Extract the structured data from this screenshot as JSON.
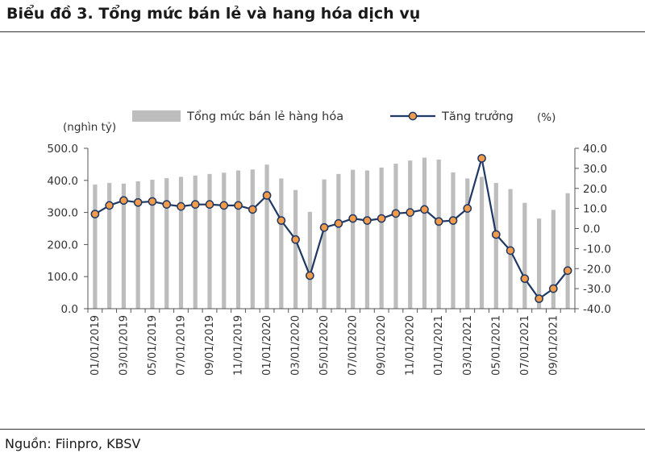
{
  "title": "Biểu đồ 3. Tổng mức bán lẻ và hang hóa dịch vụ",
  "source": "Nguồn: Fiinpro, KBSV",
  "colors": {
    "bar": "#bdbdbd",
    "line": "#1f3864",
    "marker": "#f29b4a"
  },
  "chart_data": {
    "type": "bar",
    "combo": "bar + line on secondary axis",
    "categories": [
      "01/01/2019",
      "02/01/2019",
      "03/01/2019",
      "04/01/2019",
      "05/01/2019",
      "06/01/2019",
      "07/01/2019",
      "08/01/2019",
      "09/01/2019",
      "10/01/2019",
      "11/01/2019",
      "12/01/2019",
      "01/01/2020",
      "02/01/2020",
      "03/01/2020",
      "04/01/2020",
      "05/01/2020",
      "06/01/2020",
      "07/01/2020",
      "08/01/2020",
      "09/01/2020",
      "10/01/2020",
      "11/01/2020",
      "12/01/2020",
      "01/01/2021",
      "02/01/2021",
      "03/01/2021",
      "04/01/2021",
      "05/01/2021",
      "06/01/2021",
      "07/01/2021",
      "08/01/2021",
      "09/01/2021",
      "10/01/2021"
    ],
    "xtick_labels": [
      "01/01/2019",
      "03/01/2019",
      "05/01/2019",
      "07/01/2019",
      "09/01/2019",
      "11/01/2019",
      "01/01/2020",
      "03/01/2020",
      "05/01/2020",
      "07/01/2020",
      "09/01/2020",
      "11/01/2020",
      "01/01/2021",
      "03/01/2021",
      "05/01/2021",
      "07/01/2021",
      "09/01/2021"
    ],
    "series": [
      {
        "name": "Tổng mức bán lẻ hàng hóa",
        "type": "bar",
        "axis": "left",
        "values": [
          387,
          392,
          390,
          397,
          402,
          407,
          411,
          415,
          420,
          424,
          431,
          434,
          449,
          406,
          370,
          302,
          403,
          420,
          433,
          431,
          440,
          452,
          462,
          471,
          465,
          425,
          406,
          411,
          392,
          373,
          330,
          281,
          308,
          360
        ]
      },
      {
        "name": "Tăng trưởng",
        "type": "line",
        "axis": "right",
        "values": [
          7.2,
          11.5,
          14.0,
          13.0,
          13.5,
          12.0,
          11.0,
          12.0,
          12.0,
          11.5,
          11.5,
          9.5,
          16.5,
          4.0,
          -5.5,
          -23.5,
          0.5,
          2.5,
          5.0,
          4.0,
          5.0,
          7.5,
          8.0,
          9.5,
          3.5,
          4.0,
          10.0,
          35.0,
          -3.0,
          -11.0,
          -25.0,
          -35.0,
          -30.0,
          -21.0
        ]
      }
    ],
    "y_left": {
      "label": "(nghìn tỷ)",
      "ylim": [
        0,
        500
      ],
      "ticks": [
        "0.0",
        "100.0",
        "200.0",
        "300.0",
        "400.0",
        "500.0"
      ]
    },
    "y_right": {
      "label": "(%)",
      "ylim": [
        -40,
        40
      ],
      "ticks": [
        "-40.0",
        "-30.0",
        "-20.0",
        "-10.0",
        "0.0",
        "10.0",
        "20.0",
        "30.0",
        "40.0"
      ]
    },
    "legend": {
      "placement": "top",
      "bar_label": "Tổng mức bán lẻ hàng hóa",
      "line_label": "Tăng trưởng"
    },
    "grid": false
  }
}
